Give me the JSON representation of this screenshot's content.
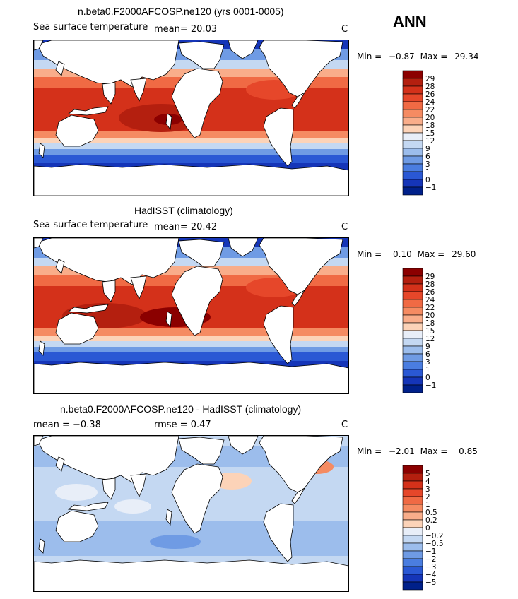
{
  "season": "ANN",
  "panels": [
    {
      "title": "n.beta0.F2000AFCOSP.ne120 (yrs 0001-0005)",
      "left_label": "Sea surface temperature",
      "mid_label": "mean=  20.03",
      "units": "C",
      "min_label": "Min =",
      "min_value": "−0.87",
      "max_label": "Max =",
      "max_value": "29.34",
      "colorbar_levels": [
        "29",
        "28",
        "26",
        "24",
        "22",
        "20",
        "18",
        "15",
        "12",
        "9",
        "6",
        "3",
        "1",
        "0",
        "−1"
      ],
      "colors": [
        "#8b0000",
        "#b41f0f",
        "#d4311a",
        "#e6472a",
        "#f06a44",
        "#f58b62",
        "#f9ad8a",
        "#fcd3b8",
        "#e8eef8",
        "#c4d8f2",
        "#9cbdec",
        "#6f9be4",
        "#4a7de0",
        "#2a58d4",
        "#1535b8",
        "#00208a"
      ]
    },
    {
      "title": "HadISST (climatology)",
      "left_label": "Sea surface temperature",
      "mid_label": "mean=  20.42",
      "units": "C",
      "min_label": "Min =",
      "min_value": "0.10",
      "max_label": "Max =",
      "max_value": "29.60",
      "colorbar_levels": [
        "29",
        "28",
        "26",
        "24",
        "22",
        "20",
        "18",
        "15",
        "12",
        "9",
        "6",
        "3",
        "1",
        "0",
        "−1"
      ],
      "colors": [
        "#8b0000",
        "#b41f0f",
        "#d4311a",
        "#e6472a",
        "#f06a44",
        "#f58b62",
        "#f9ad8a",
        "#fcd3b8",
        "#e8eef8",
        "#c4d8f2",
        "#9cbdec",
        "#6f9be4",
        "#4a7de0",
        "#2a58d4",
        "#1535b8",
        "#00208a"
      ]
    },
    {
      "title": "n.beta0.F2000AFCOSP.ne120 - HadISST (climatology)",
      "left_label": "mean =   −0.38",
      "mid_label": "rmse =    0.47",
      "units": "C",
      "min_label": "Min =",
      "min_value": "−2.01",
      "max_label": "Max =",
      "max_value": "0.85",
      "colorbar_levels": [
        "5",
        "4",
        "3",
        "2",
        "1",
        "0.5",
        "0.2",
        "0",
        "−0.2",
        "−0.5",
        "−1",
        "−2",
        "−3",
        "−4",
        "−5"
      ],
      "colors": [
        "#8b0000",
        "#b41f0f",
        "#d4311a",
        "#e6472a",
        "#f06a44",
        "#f58b62",
        "#f9ad8a",
        "#fcd3b8",
        "#e8eef8",
        "#c4d8f2",
        "#9cbdec",
        "#6f9be4",
        "#4a7de0",
        "#2a58d4",
        "#1535b8",
        "#00208a"
      ]
    }
  ],
  "chart_data": [
    {
      "type": "heatmap",
      "title": "n.beta0.F2000AFCOSP.ne120 (yrs 0001-0005)",
      "variable": "Sea surface temperature",
      "units": "C",
      "mean": 20.03,
      "min": -0.87,
      "max": 29.34,
      "contour_levels": [
        -1,
        0,
        1,
        3,
        6,
        9,
        12,
        15,
        18,
        20,
        22,
        24,
        26,
        28,
        29
      ]
    },
    {
      "type": "heatmap",
      "title": "HadISST (climatology)",
      "variable": "Sea surface temperature",
      "units": "C",
      "mean": 20.42,
      "min": 0.1,
      "max": 29.6,
      "contour_levels": [
        -1,
        0,
        1,
        3,
        6,
        9,
        12,
        15,
        18,
        20,
        22,
        24,
        26,
        28,
        29
      ]
    },
    {
      "type": "heatmap",
      "title": "n.beta0.F2000AFCOSP.ne120 - HadISST (climatology)",
      "units": "C",
      "mean": -0.38,
      "rmse": 0.47,
      "min": -2.01,
      "max": 0.85,
      "contour_levels": [
        -5,
        -4,
        -3,
        -2,
        -1,
        -0.5,
        -0.2,
        0,
        0.2,
        0.5,
        1,
        2,
        3,
        4,
        5
      ]
    }
  ]
}
